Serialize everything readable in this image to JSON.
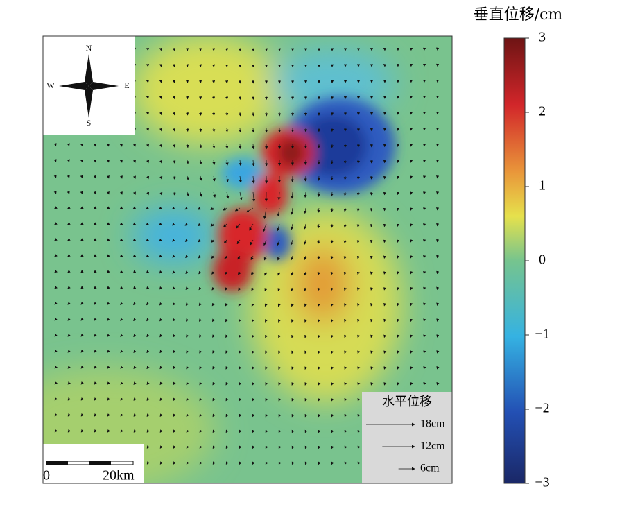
{
  "colorbar": {
    "title": "垂直位移/cm",
    "range": [
      -3,
      3
    ],
    "ticks": [
      {
        "value": 3,
        "label": "3"
      },
      {
        "value": 2,
        "label": "2"
      },
      {
        "value": 1,
        "label": "1"
      },
      {
        "value": 0,
        "label": "0"
      },
      {
        "value": -1,
        "label": "−1"
      },
      {
        "value": -2,
        "label": "−2"
      },
      {
        "value": -3,
        "label": "−3"
      }
    ]
  },
  "compass": {
    "north": "N",
    "east": "E",
    "south": "S",
    "west": "W"
  },
  "scale_bar": {
    "start": "0",
    "end": "20km"
  },
  "legend": {
    "title": "水平位移",
    "items": [
      {
        "value": 18,
        "label": "18cm"
      },
      {
        "value": 12,
        "label": "12cm"
      },
      {
        "value": 6,
        "label": "6cm"
      }
    ]
  }
}
